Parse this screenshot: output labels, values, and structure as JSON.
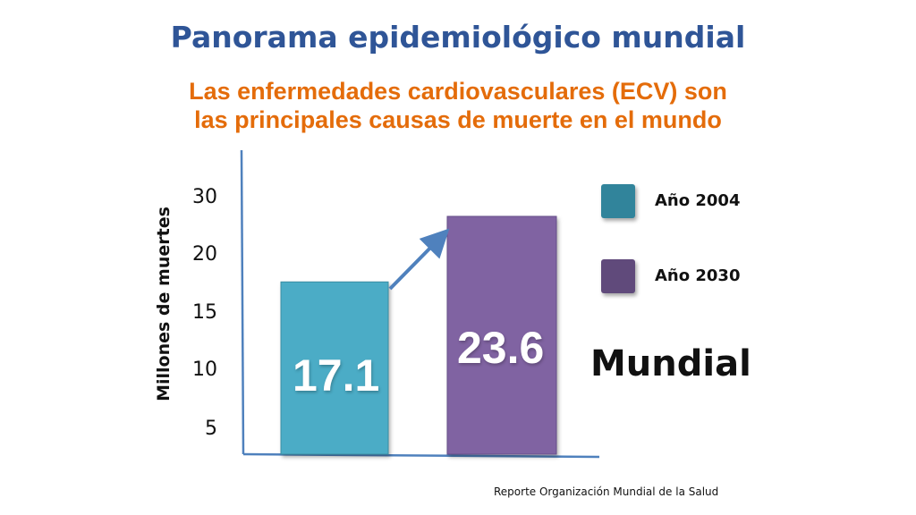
{
  "header": {
    "title": "Panorama epidemiológico mundial",
    "subtitle_lines": [
      "Las enfermedades cardiovasculares (ECV) son",
      "las principales causas de muerte en el mundo"
    ]
  },
  "chart_data": {
    "type": "bar",
    "ylabel": "Millones de muertes",
    "ytick_labels": [
      "30",
      "20",
      "15",
      "10",
      "5"
    ],
    "categories": [
      "Año 2004",
      "Año 2030"
    ],
    "values": [
      17.1,
      23.6
    ],
    "value_labels": [
      "17.1",
      "23.6"
    ],
    "colors": [
      "#4bacc6",
      "#8064a2"
    ],
    "legend": [
      {
        "label": "Año 2004",
        "color": "#31849b"
      },
      {
        "label": "Año 2030",
        "color": "#604a7b"
      }
    ],
    "legend_position": "right",
    "annotation": "Mundial",
    "trend_arrow": true,
    "grid": false
  },
  "footer": {
    "source": "Reporte Organización Mundial de la Salud"
  }
}
